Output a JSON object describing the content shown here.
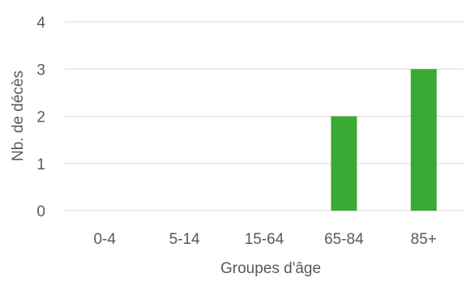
{
  "chart_data": {
    "type": "bar",
    "title": "",
    "xlabel": "Groupes d'âge",
    "ylabel": "Nb. de décès",
    "categories": [
      "0-4",
      "5-14",
      "15-64",
      "65-84",
      "85+"
    ],
    "values": [
      0,
      0,
      0,
      2,
      3
    ],
    "ylim": [
      0,
      4
    ],
    "yticks": [
      0,
      1,
      2,
      3,
      4
    ],
    "grid": true,
    "legend": "none",
    "colors": {
      "bar": "#3aaa35",
      "grid": "#d9d9d9",
      "text": "#595959"
    }
  }
}
